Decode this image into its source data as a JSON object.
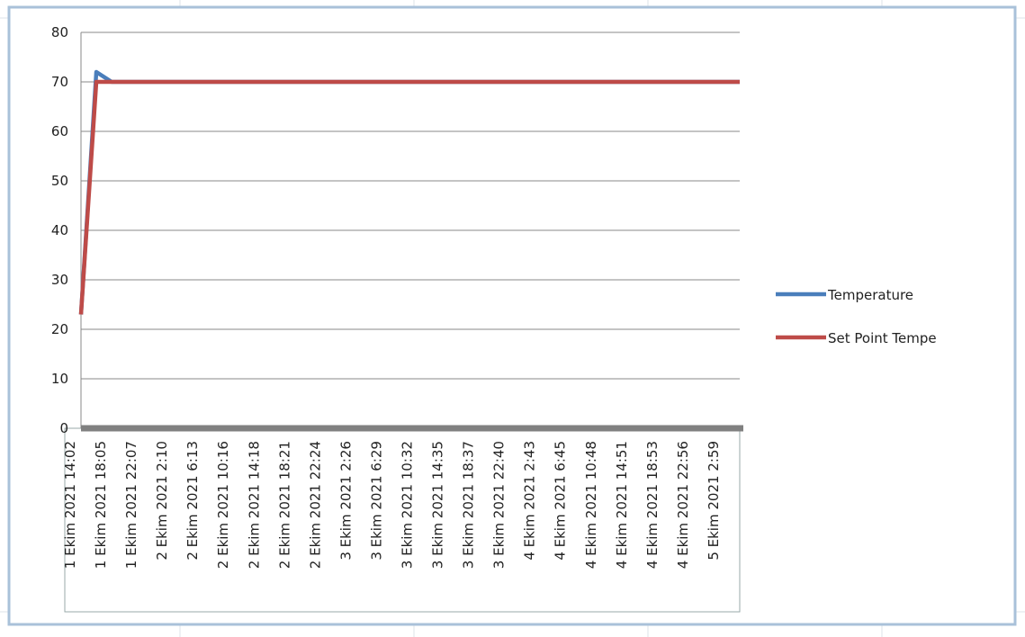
{
  "chart_data": {
    "type": "line",
    "categories": [
      "1 Ekim 2021 14:02",
      null,
      "1 Ekim 2021 18:05",
      null,
      "1 Ekim 2021 22:07",
      null,
      "2 Ekim 2021 2:10",
      null,
      "2 Ekim 2021 6:13",
      null,
      "2 Ekim 2021 10:16",
      null,
      "2 Ekim 2021 14:18",
      null,
      "2 Ekim 2021 18:21",
      null,
      "2 Ekim 2021 22:24",
      null,
      "3 Ekim 2021 2:26",
      null,
      "3 Ekim 2021 6:29",
      null,
      "3 Ekim 2021 10:32",
      null,
      "3 Ekim 2021 14:35",
      null,
      "3 Ekim 2021 18:37",
      null,
      "3 Ekim 2021 22:40",
      null,
      "4 Ekim 2021 2:43",
      null,
      "4 Ekim 2021 6:45",
      null,
      "4 Ekim 2021 10:48",
      null,
      "4 Ekim 2021 14:51",
      null,
      "4 Ekim 2021 18:53",
      null,
      "4 Ekim 2021 22:56",
      null,
      "5 Ekim 2021 2:59",
      null
    ],
    "series": [
      {
        "name": "Temperature",
        "color": "#4a7ebb",
        "values": [
          23,
          72,
          70,
          70,
          70,
          70,
          70,
          70,
          70,
          70,
          70,
          70,
          70,
          70,
          70,
          70,
          70,
          70,
          70,
          70,
          70,
          70,
          70,
          70,
          70,
          70,
          70,
          70,
          70,
          70,
          70,
          70,
          70,
          70,
          70,
          70,
          70,
          70,
          70,
          70,
          70,
          70,
          70,
          70
        ]
      },
      {
        "name": "Set Point Tempe",
        "color": "#be4b48",
        "values": [
          23,
          70,
          70,
          70,
          70,
          70,
          70,
          70,
          70,
          70,
          70,
          70,
          70,
          70,
          70,
          70,
          70,
          70,
          70,
          70,
          70,
          70,
          70,
          70,
          70,
          70,
          70,
          70,
          70,
          70,
          70,
          70,
          70,
          70,
          70,
          70,
          70,
          70,
          70,
          70,
          70,
          70,
          70,
          70
        ]
      }
    ],
    "ylim": [
      0,
      80
    ],
    "yticks": [
      0,
      10,
      20,
      30,
      40,
      50,
      60,
      70,
      80
    ],
    "grid": true,
    "legend": "right"
  }
}
